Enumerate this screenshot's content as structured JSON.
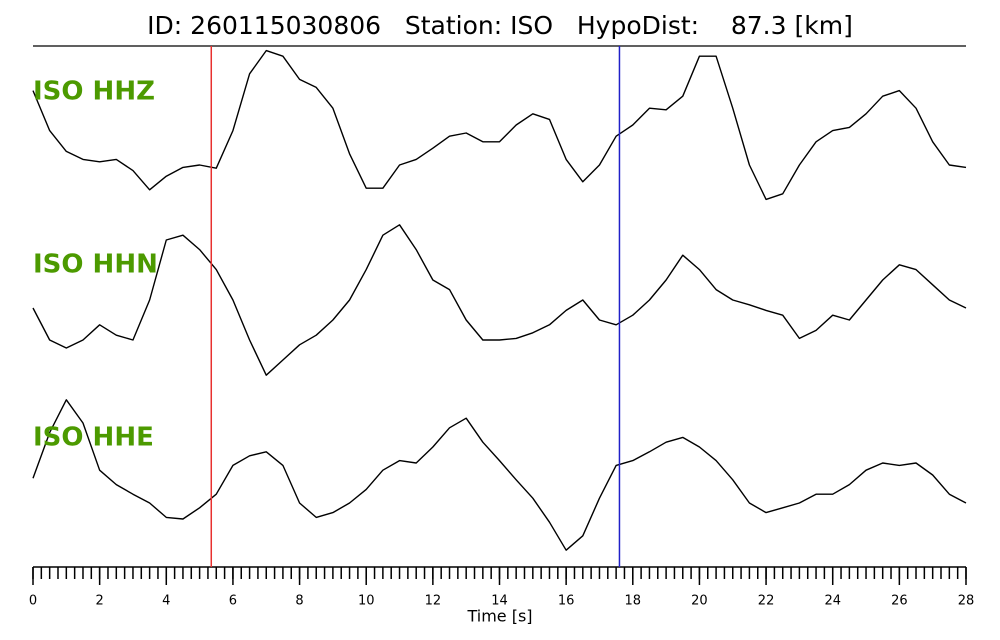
{
  "chart_data": {
    "type": "line",
    "title": "ID: 260115030806   Station: ISO   HypoDist:    87.3 [km]",
    "x_label": "Time [s]",
    "xlim": [
      0,
      28
    ],
    "xticks": [
      0,
      2,
      4,
      6,
      8,
      10,
      12,
      14,
      16,
      18,
      20,
      22,
      24,
      26,
      28
    ],
    "minor_xticks": [
      0,
      0.25,
      0.5,
      0.75,
      1,
      1.25,
      1.5,
      1.75,
      2,
      2.25,
      2.5,
      2.75,
      3,
      3.25,
      3.5,
      3.75,
      4,
      4.25,
      4.5,
      4.75,
      5,
      5.25,
      5.5,
      5.75,
      6,
      6.25,
      6.5,
      6.75,
      7,
      7.25,
      7.5,
      7.75,
      8,
      8.25,
      8.5,
      8.75,
      9,
      9.25,
      9.5,
      9.75,
      10,
      10.25,
      10.5,
      10.75,
      11,
      11.25,
      11.5,
      11.75,
      12,
      12.25,
      12.5,
      12.75,
      13,
      13.25,
      13.5,
      13.75,
      14,
      14.25,
      14.5,
      14.75,
      15,
      15.25,
      15.5,
      15.75,
      16,
      16.25,
      16.5,
      16.75,
      17,
      17.25,
      17.5,
      17.75,
      18,
      18.25,
      18.5,
      18.75,
      19,
      19.25,
      19.5,
      19.75,
      20,
      20.25,
      20.5,
      20.75,
      21,
      21.25,
      21.5,
      21.75,
      22,
      22.25,
      22.5,
      22.75,
      23,
      23.25,
      23.5,
      23.75,
      24,
      24.25,
      24.5,
      24.75,
      25,
      25.25,
      25.5,
      25.75,
      26,
      26.25,
      26.5,
      26.75,
      27,
      27.25,
      27.5,
      27.75,
      28
    ],
    "ylim": [
      -1,
      1
    ],
    "markers": [
      {
        "x": 5.35,
        "color": "#e8302f"
      },
      {
        "x": 17.6,
        "color": "#2020c8"
      }
    ],
    "x": [
      0,
      0.5,
      1,
      1.5,
      2,
      2.5,
      3,
      3.5,
      4,
      4.5,
      5,
      5.5,
      6,
      6.5,
      7,
      7.5,
      8,
      8.5,
      9,
      9.5,
      10,
      10.5,
      11,
      11.5,
      12,
      12.5,
      13,
      13.5,
      14,
      14.5,
      15,
      15.5,
      16,
      16.5,
      17,
      17.5,
      18,
      18.5,
      19,
      19.5,
      20,
      20.5,
      21,
      21.5,
      22,
      22.5,
      23,
      23.5,
      24,
      24.5,
      25,
      25.5,
      26,
      26.5,
      27,
      27.5,
      28
    ],
    "series": [
      {
        "name": "ISO HHZ",
        "color": "#000000",
        "values": [
          0.43,
          -0.07,
          -0.33,
          -0.43,
          -0.46,
          -0.43,
          -0.57,
          -0.81,
          -0.64,
          -0.53,
          -0.5,
          -0.54,
          -0.07,
          0.64,
          0.93,
          0.86,
          0.57,
          0.47,
          0.21,
          -0.36,
          -0.79,
          -0.79,
          -0.5,
          -0.43,
          -0.29,
          -0.14,
          -0.1,
          -0.21,
          -0.21,
          0,
          0.14,
          0.07,
          -0.43,
          -0.71,
          -0.5,
          -0.14,
          0,
          0.21,
          0.19,
          0.36,
          0.86,
          0.86,
          0.21,
          -0.5,
          -0.93,
          -0.86,
          -0.5,
          -0.21,
          -0.07,
          -0.03,
          0.14,
          0.36,
          0.43,
          0.21,
          -0.21,
          -0.5,
          -0.53
        ]
      },
      {
        "name": "ISO HHN",
        "color": "#000000",
        "values": [
          -0.1,
          -0.5,
          -0.6,
          -0.5,
          -0.31,
          -0.44,
          -0.5,
          0,
          0.75,
          0.81,
          0.63,
          0.38,
          0,
          -0.5,
          -0.94,
          -0.75,
          -0.56,
          -0.44,
          -0.25,
          0,
          0.38,
          0.81,
          0.94,
          0.63,
          0.25,
          0.13,
          -0.25,
          -0.5,
          -0.5,
          -0.48,
          -0.41,
          -0.31,
          -0.13,
          0,
          -0.25,
          -0.31,
          -0.19,
          0,
          0.25,
          0.56,
          0.38,
          0.13,
          0,
          -0.06,
          -0.13,
          -0.19,
          -0.48,
          -0.38,
          -0.19,
          -0.25,
          0,
          0.25,
          0.44,
          0.38,
          0.19,
          0,
          -0.1
        ]
      },
      {
        "name": "ISO HHE",
        "color": "#000000",
        "values": [
          -0.04,
          0.53,
          0.94,
          0.65,
          0.06,
          -0.12,
          -0.24,
          -0.35,
          -0.53,
          -0.55,
          -0.41,
          -0.24,
          0.12,
          0.24,
          0.29,
          0.12,
          -0.35,
          -0.53,
          -0.47,
          -0.35,
          -0.18,
          0.06,
          0.18,
          0.15,
          0.35,
          0.59,
          0.71,
          0.41,
          0.18,
          -0.06,
          -0.29,
          -0.59,
          -0.94,
          -0.76,
          -0.29,
          0.12,
          0.18,
          0.29,
          0.41,
          0.47,
          0.35,
          0.18,
          -0.06,
          -0.35,
          -0.47,
          -0.41,
          -0.35,
          -0.24,
          -0.24,
          -0.12,
          0.06,
          0.15,
          0.12,
          0.15,
          0,
          -0.24,
          -0.35
        ]
      }
    ]
  }
}
